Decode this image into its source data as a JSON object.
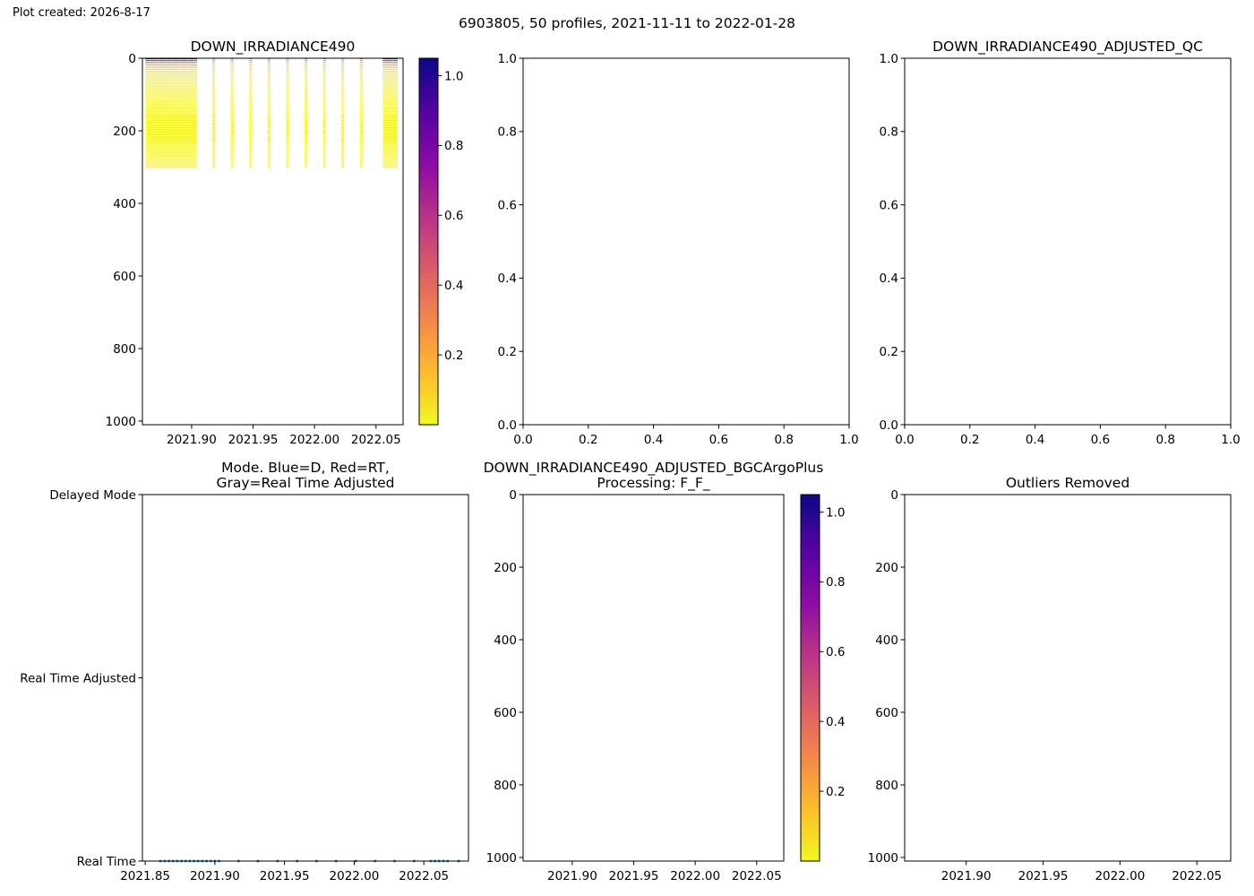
{
  "figure": {
    "created_label": "Plot created: 2026-8-17",
    "suptitle": "6903805, 50 profiles, 2021-11-11 to 2022-01-28"
  },
  "chart_data": [
    {
      "type": "heatmap",
      "title": "DOWN_IRRADIANCE490",
      "xlim": [
        2021.86,
        2022.072
      ],
      "ylim": [
        1010,
        0
      ],
      "x_ticks": [
        2021.9,
        2021.95,
        2022.0,
        2022.05
      ],
      "x_tick_labels": [
        "2021.90",
        "2021.95",
        "2022.00",
        "2022.05"
      ],
      "y_ticks": [
        0,
        200,
        400,
        600,
        800,
        1000
      ],
      "y_tick_labels": [
        "0",
        "200",
        "400",
        "600",
        "800",
        "1000"
      ],
      "profile_times": [
        2021.864,
        2021.867,
        2021.87,
        2021.873,
        2021.876,
        2021.879,
        2021.882,
        2021.885,
        2021.888,
        2021.891,
        2021.894,
        2021.897,
        2021.9,
        2021.903,
        2021.918,
        2021.933,
        2021.948,
        2021.963,
        2021.978,
        2021.993,
        2022.008,
        2022.023,
        2022.038,
        2022.057,
        2022.06,
        2022.063,
        2022.066
      ],
      "max_depth": 300,
      "surface_value": 1.05,
      "background_value": 0.02,
      "colorbar": {
        "cmap": "plasma_r",
        "vmin": 0.0,
        "vmax": 1.05,
        "ticks": [
          0.2,
          0.4,
          0.6,
          0.8,
          1.0
        ],
        "tick_labels": [
          "0.2",
          "0.4",
          "0.6",
          "0.8",
          "1.0"
        ]
      },
      "grid": false
    },
    {
      "type": "scatter",
      "title": "",
      "xlim": [
        0.0,
        1.0
      ],
      "ylim": [
        0.0,
        1.0
      ],
      "x_ticks": [
        0.0,
        0.2,
        0.4,
        0.6,
        0.8,
        1.0
      ],
      "x_tick_labels": [
        "0.0",
        "0.2",
        "0.4",
        "0.6",
        "0.8",
        "1.0"
      ],
      "y_ticks": [
        0.0,
        0.2,
        0.4,
        0.6,
        0.8,
        1.0
      ],
      "y_tick_labels": [
        "0.0",
        "0.2",
        "0.4",
        "0.6",
        "0.8",
        "1.0"
      ],
      "series": [],
      "grid": false
    },
    {
      "type": "scatter",
      "title": "DOWN_IRRADIANCE490_ADJUSTED_QC",
      "xlim": [
        0.0,
        1.0
      ],
      "ylim": [
        0.0,
        1.0
      ],
      "x_ticks": [
        0.0,
        0.2,
        0.4,
        0.6,
        0.8,
        1.0
      ],
      "x_tick_labels": [
        "0.0",
        "0.2",
        "0.4",
        "0.6",
        "0.8",
        "1.0"
      ],
      "y_ticks": [
        0.0,
        0.2,
        0.4,
        0.6,
        0.8,
        1.0
      ],
      "y_tick_labels": [
        "0.0",
        "0.2",
        "0.4",
        "0.6",
        "0.8",
        "1.0"
      ],
      "series": [],
      "grid": false
    },
    {
      "type": "scatter",
      "title": "Mode. Blue=D, Red=RT,\nGray=Real Time Adjusted",
      "xlim": [
        2021.848,
        2022.082
      ],
      "ylim": [
        0,
        2
      ],
      "x_ticks": [
        2021.85,
        2021.9,
        2021.95,
        2022.0,
        2022.05
      ],
      "x_tick_labels": [
        "2021.85",
        "2021.90",
        "2021.95",
        "2022.00",
        "2022.05"
      ],
      "y_ticks": [
        0,
        1,
        2
      ],
      "y_tick_labels": [
        "Real Time",
        "Real Time Adjusted",
        "Delayed Mode"
      ],
      "series": [
        {
          "color": "#1f77b4",
          "x": [
            2021.861,
            2021.864,
            2021.867,
            2021.87,
            2021.873,
            2021.876,
            2021.879,
            2021.882,
            2021.885,
            2021.888,
            2021.891,
            2021.894,
            2021.897,
            2021.9,
            2021.903,
            2021.917,
            2021.931,
            2021.945,
            2021.959,
            2021.973,
            2021.987,
            2022.001,
            2022.015,
            2022.029,
            2022.043,
            2022.055,
            2022.058,
            2022.061,
            2022.064,
            2022.067,
            2022.075
          ],
          "y": [
            0,
            0,
            0,
            0,
            0,
            0,
            0,
            0,
            0,
            0,
            0,
            0,
            0,
            0,
            0,
            0,
            0,
            0,
            0,
            0,
            0,
            0,
            0,
            0,
            0,
            0,
            0,
            0,
            0,
            0,
            0
          ]
        }
      ],
      "grid": false
    },
    {
      "type": "heatmap",
      "title": "DOWN_IRRADIANCE490_ADJUSTED_BGCArgoPlus\nProcessing: F_F_",
      "xlim": [
        2021.86,
        2022.072
      ],
      "ylim": [
        1010,
        0
      ],
      "x_ticks": [
        2021.9,
        2021.95,
        2022.0,
        2022.05
      ],
      "x_tick_labels": [
        "2021.90",
        "2021.95",
        "2022.00",
        "2022.05"
      ],
      "y_ticks": [
        0,
        200,
        400,
        600,
        800,
        1000
      ],
      "y_tick_labels": [
        "0",
        "200",
        "400",
        "600",
        "800",
        "1000"
      ],
      "profile_times": [],
      "colorbar": {
        "cmap": "plasma_r",
        "vmin": 0.0,
        "vmax": 1.05,
        "ticks": [
          0.2,
          0.4,
          0.6,
          0.8,
          1.0
        ],
        "tick_labels": [
          "0.2",
          "0.4",
          "0.6",
          "0.8",
          "1.0"
        ]
      },
      "grid": false
    },
    {
      "type": "scatter",
      "title": "Outliers Removed",
      "xlim": [
        2021.86,
        2022.072
      ],
      "ylim": [
        1010,
        0
      ],
      "x_ticks": [
        2021.9,
        2021.95,
        2022.0,
        2022.05
      ],
      "x_tick_labels": [
        "2021.90",
        "2021.95",
        "2022.00",
        "2022.05"
      ],
      "y_ticks": [
        0,
        200,
        400,
        600,
        800,
        1000
      ],
      "y_tick_labels": [
        "0",
        "200",
        "400",
        "600",
        "800",
        "1000"
      ],
      "series": [],
      "grid": false
    }
  ]
}
